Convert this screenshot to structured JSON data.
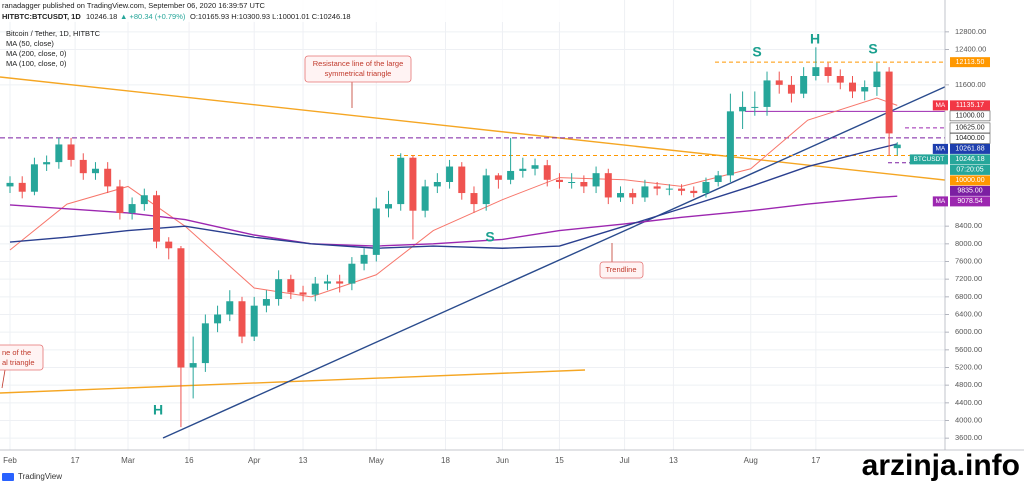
{
  "header": {
    "publisher": "ranadagger published on TradingView.com, September 06, 2020 16:39:57 UTC",
    "symbol": "HITBTC:BTCUSDT, 1D",
    "last": "10246.18",
    "change": "▲ +80.34 (+0.79%)",
    "ohlc": "O:10165.93 H:10300.93 L:10001.01 C:10246.18"
  },
  "legend": [
    "Bitcoin / Tether, 1D, HITBTC",
    "MA (50, close)",
    "MA (200, close, 0)",
    "MA (100, close, 0)"
  ],
  "annotations": {
    "resistance": [
      "Resistance line of the large",
      "symmetrical triangle"
    ],
    "trendline": [
      "Trendline"
    ],
    "support": [
      "ne of the",
      "al triangle"
    ],
    "pattern": [
      "S",
      "H",
      "S",
      "S",
      "H"
    ]
  },
  "footer": {
    "brand": "TradingView",
    "watermark": "arzinja.info"
  },
  "chart_data": {
    "type": "candlestick",
    "x": [
      "2020-02-01",
      "2020-02-04",
      "2020-02-07",
      "2020-02-10",
      "2020-02-13",
      "2020-02-16",
      "2020-02-19",
      "2020-02-22",
      "2020-02-25",
      "2020-02-28",
      "2020-03-02",
      "2020-03-05",
      "2020-03-08",
      "2020-03-11",
      "2020-03-14",
      "2020-03-17",
      "2020-03-20",
      "2020-03-23",
      "2020-03-26",
      "2020-03-29",
      "2020-04-01",
      "2020-04-04",
      "2020-04-07",
      "2020-04-10",
      "2020-04-13",
      "2020-04-16",
      "2020-04-19",
      "2020-04-22",
      "2020-04-25",
      "2020-04-28",
      "2020-05-01",
      "2020-05-04",
      "2020-05-07",
      "2020-05-10",
      "2020-05-13",
      "2020-05-16",
      "2020-05-19",
      "2020-05-22",
      "2020-05-25",
      "2020-05-28",
      "2020-05-31",
      "2020-06-03",
      "2020-06-06",
      "2020-06-09",
      "2020-06-12",
      "2020-06-15",
      "2020-06-18",
      "2020-06-21",
      "2020-06-24",
      "2020-06-27",
      "2020-06-30",
      "2020-07-03",
      "2020-07-06",
      "2020-07-09",
      "2020-07-12",
      "2020-07-15",
      "2020-07-18",
      "2020-07-21",
      "2020-07-24",
      "2020-07-27",
      "2020-07-30",
      "2020-08-02",
      "2020-08-05",
      "2020-08-08",
      "2020-08-11",
      "2020-08-14",
      "2020-08-17",
      "2020-08-20",
      "2020-08-23",
      "2020-08-26",
      "2020-08-29",
      "2020-09-01",
      "2020-09-04",
      "2020-09-06"
    ],
    "open": [
      9300,
      9380,
      9180,
      9800,
      9850,
      10250,
      9900,
      9600,
      9700,
      9300,
      8700,
      8900,
      9100,
      8050,
      7900,
      5200,
      5300,
      6200,
      6400,
      6700,
      5900,
      6600,
      6750,
      7200,
      6900,
      6850,
      7100,
      7150,
      7100,
      7550,
      7750,
      8800,
      8900,
      9950,
      8750,
      9300,
      9400,
      9750,
      9150,
      8900,
      9550,
      9450,
      9650,
      9700,
      9780,
      9450,
      9400,
      9400,
      9300,
      9600,
      9050,
      9150,
      9050,
      9300,
      9250,
      9250,
      9200,
      9150,
      9400,
      9550,
      11000,
      11100,
      11100,
      11700,
      11600,
      11400,
      11800,
      12000,
      11800,
      11650,
      11450,
      11550,
      11900,
      10165.93
    ],
    "high": [
      9530,
      9530,
      9950,
      10000,
      10400,
      10400,
      10050,
      9850,
      9850,
      9450,
      9050,
      9250,
      9200,
      8150,
      7950,
      5900,
      6400,
      6600,
      6950,
      6800,
      6800,
      6950,
      7400,
      7300,
      7050,
      7250,
      7300,
      7300,
      7700,
      7900,
      9050,
      9200,
      10050,
      10000,
      9450,
      9600,
      9900,
      9850,
      9300,
      9700,
      9600,
      10400,
      9950,
      9930,
      9900,
      9600,
      9600,
      9550,
      9750,
      9700,
      9300,
      9250,
      9450,
      9400,
      9350,
      9350,
      9300,
      9500,
      9650,
      11400,
      11450,
      11450,
      11900,
      11900,
      11800,
      12000,
      12450,
      12100,
      11950,
      11800,
      11700,
      12100,
      12000,
      10300.93
    ],
    "low": [
      9150,
      9030,
      9100,
      9650,
      9700,
      9750,
      9450,
      9450,
      9150,
      8550,
      8550,
      8750,
      7900,
      7650,
      3850,
      4500,
      5100,
      6000,
      6250,
      5750,
      5800,
      6450,
      6600,
      6750,
      6700,
      6700,
      6950,
      6900,
      6950,
      7400,
      7600,
      8600,
      8750,
      8100,
      8600,
      9150,
      9250,
      9000,
      8700,
      8750,
      9250,
      9350,
      9500,
      9550,
      9300,
      9250,
      9250,
      9150,
      9150,
      8900,
      8950,
      8900,
      8950,
      9100,
      9100,
      9100,
      9050,
      9050,
      9300,
      9400,
      10600,
      10900,
      10900,
      11400,
      11200,
      11300,
      11700,
      11650,
      11500,
      11300,
      11250,
      11350,
      10000,
      10001.01
    ],
    "close": [
      9380,
      9180,
      9800,
      9850,
      10250,
      9900,
      9600,
      9700,
      9300,
      8700,
      8900,
      9100,
      8050,
      7900,
      5200,
      5300,
      6200,
      6400,
      6700,
      5900,
      6600,
      6750,
      7200,
      6900,
      6850,
      7100,
      7150,
      7100,
      7550,
      7750,
      8800,
      8900,
      9950,
      8750,
      9300,
      9400,
      9750,
      9150,
      8900,
      9550,
      9450,
      9650,
      9700,
      9780,
      9450,
      9400,
      9400,
      9300,
      9600,
      9050,
      9150,
      9050,
      9300,
      9250,
      9250,
      9200,
      9150,
      9400,
      9550,
      11000,
      11100,
      11100,
      11700,
      11600,
      11400,
      11800,
      12000,
      11800,
      11650,
      11450,
      11550,
      11900,
      10500,
      10246.18
    ],
    "up_color": "#26a69a",
    "down_color": "#ef5350",
    "ma": [
      {
        "name": "MA (50, close)",
        "color": "#f7766b",
        "x": [
          "2020-02-01",
          "2020-02-15",
          "2020-03-01",
          "2020-03-15",
          "2020-04-01",
          "2020-04-15",
          "2020-05-01",
          "2020-05-15",
          "2020-06-01",
          "2020-06-15",
          "2020-07-01",
          "2020-07-15",
          "2020-08-01",
          "2020-08-15",
          "2020-09-01",
          "2020-09-06"
        ],
        "values": [
          7860,
          8900,
          9300,
          8400,
          7000,
          6800,
          7300,
          8300,
          9000,
          9500,
          9450,
          9300,
          9700,
          10800,
          11300,
          11135.17
        ]
      },
      {
        "name": "MA (200, close, 0)",
        "color": "#9c27b0",
        "x": [
          "2020-02-01",
          "2020-03-01",
          "2020-03-15",
          "2020-04-01",
          "2020-04-15",
          "2020-05-01",
          "2020-05-15",
          "2020-06-01",
          "2020-06-15",
          "2020-07-01",
          "2020-07-15",
          "2020-08-01",
          "2020-08-15",
          "2020-09-01",
          "2020-09-06"
        ],
        "values": [
          8880,
          8700,
          8550,
          8200,
          8000,
          7950,
          8000,
          8100,
          8300,
          8450,
          8600,
          8750,
          8900,
          9050,
          9078.54
        ]
      },
      {
        "name": "MA (100, close, 0)",
        "color": "#2a3f8f",
        "x": [
          "2020-02-01",
          "2020-02-15",
          "2020-03-01",
          "2020-03-15",
          "2020-04-01",
          "2020-04-15",
          "2020-05-01",
          "2020-05-15",
          "2020-06-01",
          "2020-06-15",
          "2020-07-01",
          "2020-07-15",
          "2020-08-01",
          "2020-08-15",
          "2020-09-01",
          "2020-09-06"
        ],
        "values": [
          8040,
          8150,
          8300,
          8400,
          8150,
          8000,
          7900,
          7950,
          7900,
          7950,
          8400,
          8800,
          9300,
          9750,
          10150,
          10261.88
        ]
      }
    ],
    "ylim": [
      3400,
      13000
    ],
    "yticks": [
      {
        "value": 12800,
        "label": "12800.00"
      },
      {
        "value": 12400,
        "label": "12400.00"
      },
      {
        "value": 11600,
        "label": "11600.00"
      },
      {
        "value": 8400,
        "label": "8400.00"
      },
      {
        "value": 8000,
        "label": "8000.00"
      },
      {
        "value": 7600,
        "label": "7600.00"
      },
      {
        "value": 7200,
        "label": "7200.00"
      },
      {
        "value": 6800,
        "label": "6800.00"
      },
      {
        "value": 6400,
        "label": "6400.00"
      },
      {
        "value": 6000,
        "label": "6000.00"
      },
      {
        "value": 5600,
        "label": "5600.00"
      },
      {
        "value": 5200,
        "label": "5200.00"
      },
      {
        "value": 4800,
        "label": "4800.00"
      },
      {
        "value": 4400,
        "label": "4400.00"
      },
      {
        "value": 4000,
        "label": "4000.00"
      },
      {
        "value": 3600,
        "label": "3600.00"
      }
    ],
    "xticks": [
      {
        "value": "2020-02-01",
        "label": "Feb"
      },
      {
        "value": "2020-02-17",
        "label": "17"
      },
      {
        "value": "2020-03-01",
        "label": "Mar"
      },
      {
        "value": "2020-03-16",
        "label": "16"
      },
      {
        "value": "2020-04-01",
        "label": "Apr"
      },
      {
        "value": "2020-04-13",
        "label": "13"
      },
      {
        "value": "2020-05-01",
        "label": "May"
      },
      {
        "value": "2020-05-18",
        "label": "18"
      },
      {
        "value": "2020-06-01",
        "label": "Jun"
      },
      {
        "value": "2020-06-15",
        "label": "15"
      },
      {
        "value": "2020-07-01",
        "label": "Jul"
      },
      {
        "value": "2020-07-13",
        "label": "13"
      },
      {
        "value": "2020-08-01",
        "label": "Aug"
      },
      {
        "value": "2020-08-17",
        "label": "17"
      }
    ],
    "price_labels": [
      {
        "value": 12113.5,
        "label": "12113.50",
        "color": "#ff9800"
      },
      {
        "value": 11135.17,
        "label": "11135.17",
        "tag": "MA",
        "color": "#f23645"
      },
      {
        "value": 11000,
        "label": "11000.00",
        "color": "#ffffff"
      },
      {
        "value": 10625,
        "label": "10625.00",
        "color": "#ffffff"
      },
      {
        "value": 10400,
        "label": "10400.00",
        "color": "#ffffff"
      },
      {
        "value": 10261.88,
        "label": "10261.88",
        "tag": "MA",
        "color": "#1e3fae"
      },
      {
        "value": 10246.18,
        "label": "10246.18",
        "tag": "BTCUSDT",
        "sub": "07:20:05",
        "color": "#26a69a"
      },
      {
        "value": 10000,
        "label": "10000.00",
        "color": "#ff9800"
      },
      {
        "value": 9835,
        "label": "9835.00",
        "color": "#7b1fa2"
      },
      {
        "value": 9078.54,
        "label": "9078.54",
        "tag": "MA",
        "color": "#9c27b0"
      }
    ],
    "grid": true
  }
}
